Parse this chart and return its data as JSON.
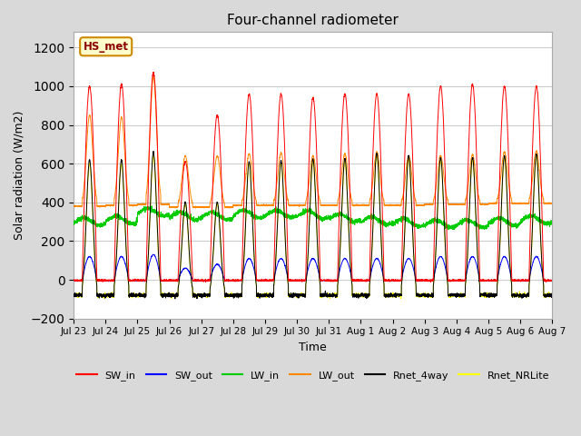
{
  "title": "Four-channel radiometer",
  "ylabel": "Solar radiation (W/m2)",
  "xlabel": "Time",
  "station_label": "HS_met",
  "x_tick_labels": [
    "Jul 23",
    "Jul 24",
    "Jul 25",
    "Jul 26",
    "Jul 27",
    "Jul 28",
    "Jul 29",
    "Jul 30",
    "Jul 31",
    "Aug 1",
    "Aug 2",
    "Aug 3",
    "Aug 4",
    "Aug 5",
    "Aug 6",
    "Aug 7"
  ],
  "ylim": [
    -200,
    1280
  ],
  "yticks": [
    -200,
    0,
    200,
    400,
    600,
    800,
    1000,
    1200
  ],
  "n_days": 15,
  "pts_per_day": 288,
  "SW_in_peaks": [
    1000,
    1010,
    1070,
    610,
    850,
    960,
    960,
    940,
    960,
    960,
    960,
    1000,
    1010,
    1000,
    1000
  ],
  "SW_out_peaks": [
    120,
    120,
    130,
    60,
    80,
    110,
    110,
    110,
    110,
    110,
    110,
    120,
    120,
    120,
    120
  ],
  "LW_in_base": [
    300,
    310,
    350,
    330,
    330,
    340,
    340,
    335,
    320,
    305,
    295,
    290,
    290,
    300,
    310
  ],
  "LW_out_base": [
    380,
    385,
    390,
    375,
    375,
    385,
    385,
    385,
    385,
    385,
    385,
    390,
    390,
    395,
    395
  ],
  "LW_out_peaks": [
    850,
    840,
    1050,
    640,
    640,
    650,
    655,
    640,
    650,
    660,
    640,
    640,
    645,
    660,
    665
  ],
  "Rnet_4way_peaks": [
    620,
    620,
    660,
    400,
    400,
    610,
    615,
    625,
    625,
    655,
    640,
    630,
    630,
    640,
    650
  ],
  "Rnet_NRLite_peaks": [
    600,
    600,
    640,
    390,
    390,
    600,
    600,
    605,
    610,
    640,
    625,
    615,
    620,
    625,
    635
  ],
  "night_SW_in": -3,
  "night_SW_out": -3,
  "night_Rnet": -80,
  "day_start": 0.27,
  "day_end": 0.73,
  "colors": {
    "SW_in": "#ff0000",
    "SW_out": "#0000ff",
    "LW_in": "#00cc00",
    "LW_out": "#ff8800",
    "Rnet_4way": "#000000",
    "Rnet_NRLite": "#ffff00"
  },
  "bg_color": "#d9d9d9",
  "plot_bg": "#ffffff",
  "figsize": [
    6.4,
    4.8
  ],
  "dpi": 100
}
